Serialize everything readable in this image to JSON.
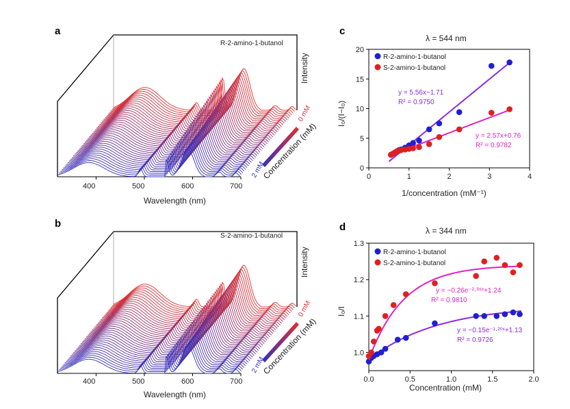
{
  "panels": {
    "a": {
      "letter": "a",
      "sample_label": "R-2-amino-1-butanol"
    },
    "b": {
      "letter": "b",
      "sample_label": "S-2-amino-1-butanol"
    },
    "c": {
      "letter": "c"
    },
    "d": {
      "letter": "d"
    }
  },
  "waterfall": {
    "xlabel": "Wavelength (nm)",
    "zlabel": "Intensity",
    "depth_label": "Concentration (mM)",
    "conc_low": "0 mM",
    "conc_high": "2 mM",
    "ticks": [
      "400",
      "500",
      "600",
      "700"
    ],
    "color_low": "#e03030",
    "color_high": "#3030c0"
  },
  "chart_data": [
    {
      "id": "c",
      "type": "scatter",
      "title": "λ = 544 nm",
      "xlabel": "1/concentration (mM⁻¹)",
      "ylabel": "I₀/(I−I₀)",
      "xlim": [
        0,
        4
      ],
      "ylim": [
        0,
        20
      ],
      "xticks": [
        "0",
        "1",
        "2",
        "3",
        "4"
      ],
      "yticks": [
        "0",
        "5",
        "10",
        "15",
        "20"
      ],
      "series": [
        {
          "name": "R-2-amino-1-butanol",
          "color": "#2020d0",
          "fit_color": "#8a2be2",
          "x": [
            0.55,
            0.6,
            0.65,
            0.7,
            0.75,
            0.8,
            0.9,
            1.0,
            1.1,
            1.25,
            1.5,
            1.75,
            2.25,
            3.05,
            3.5
          ],
          "y": [
            2.2,
            2.4,
            2.6,
            2.8,
            3.0,
            3.1,
            3.4,
            3.8,
            4.2,
            4.6,
            6.5,
            7.5,
            9.4,
            17.2,
            17.8
          ],
          "fit": {
            "kind": "linear",
            "slope": 5.56,
            "intercept": -1.71,
            "x0": 0.5,
            "x1": 3.5
          },
          "equation": "y = 5.56x−1.71",
          "r2": "R² = 0.9750"
        },
        {
          "name": "S-2-amino-1-butanol",
          "color": "#e02020",
          "fit_color": "#e020c0",
          "x": [
            0.55,
            0.6,
            0.65,
            0.7,
            0.75,
            0.8,
            0.9,
            1.0,
            1.1,
            1.25,
            1.5,
            1.75,
            2.25,
            3.05,
            3.5
          ],
          "y": [
            2.2,
            2.4,
            2.6,
            2.8,
            2.9,
            3.0,
            3.1,
            3.2,
            3.3,
            3.5,
            4.0,
            5.2,
            6.5,
            9.3,
            9.9
          ],
          "fit": {
            "kind": "linear",
            "slope": 2.57,
            "intercept": 0.76,
            "x0": 0.5,
            "x1": 3.5
          },
          "equation": "y = 2.57x+0.76",
          "r2": "R² = 0.9782"
        }
      ]
    },
    {
      "id": "d",
      "type": "scatter",
      "title": "λ = 344 nm",
      "xlabel": "Concentration (mM)",
      "ylabel": "I₀/I",
      "xlim": [
        0,
        2.0
      ],
      "ylim": [
        0.95,
        1.3
      ],
      "xticks": [
        "0.0",
        "0.5",
        "1.0",
        "1.5",
        "2.0"
      ],
      "yticks": [
        "1.0",
        "1.1",
        "1.2",
        "1.3"
      ],
      "series": [
        {
          "name": "R-2-amino-1-butanol",
          "color": "#2020d0",
          "fit_color": "#8a2be2",
          "x": [
            0.0,
            0.03,
            0.06,
            0.1,
            0.15,
            0.2,
            0.35,
            0.45,
            0.8,
            1.3,
            1.4,
            1.55,
            1.65,
            1.75,
            1.83
          ],
          "y": [
            0.975,
            0.985,
            0.99,
            0.995,
            1.0,
            1.01,
            1.035,
            1.04,
            1.08,
            1.1,
            1.1,
            1.1,
            1.105,
            1.11,
            1.105
          ],
          "fit": {
            "kind": "exp",
            "a": -0.15,
            "b": -1.2,
            "c": 1.13,
            "x0": 0.0,
            "x1": 1.85
          },
          "equation": "y = −0.15e⁻¹·²⁰ˣ+1.13",
          "r2": "R² = 0.9726"
        },
        {
          "name": "S-2-amino-1-butanol",
          "color": "#e02020",
          "fit_color": "#e020c0",
          "x": [
            0.0,
            0.03,
            0.06,
            0.1,
            0.12,
            0.2,
            0.3,
            0.45,
            0.8,
            1.3,
            1.4,
            1.55,
            1.65,
            1.75,
            1.83
          ],
          "y": [
            0.99,
            1.0,
            1.03,
            1.06,
            1.065,
            1.1,
            1.13,
            1.16,
            1.19,
            1.21,
            1.25,
            1.26,
            1.24,
            1.22,
            1.24
          ],
          "fit": {
            "kind": "exp",
            "a": -0.26,
            "b": -2.39,
            "c": 1.24,
            "x0": 0.0,
            "x1": 1.85
          },
          "equation": "y = −0.26e⁻²·³⁹ˣ+1.24",
          "r2": "R² = 0.9810"
        }
      ]
    }
  ]
}
